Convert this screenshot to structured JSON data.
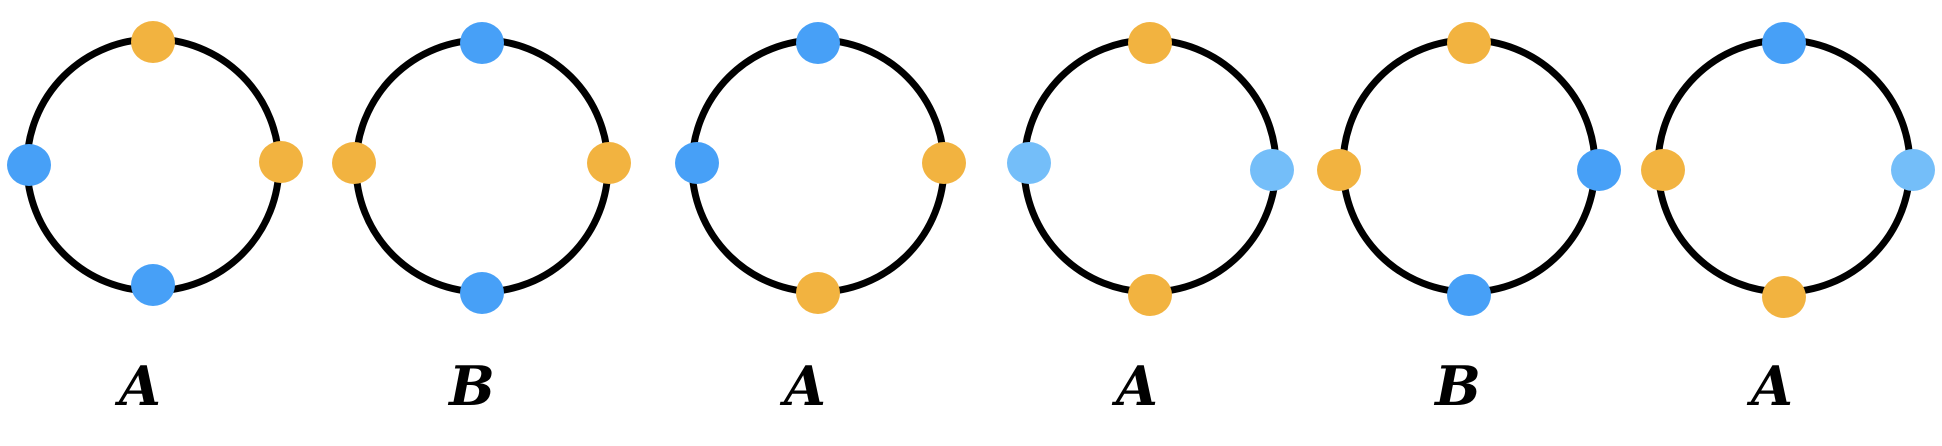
{
  "colors": {
    "ring": "#000000",
    "orange": "#F2B340",
    "blue": "#47A0F7",
    "light_blue": "#74BEF9"
  },
  "diagrams": [
    {
      "label": "A",
      "nodes": {
        "top": "orange",
        "right": "orange",
        "bottom": "blue",
        "left": "blue"
      }
    },
    {
      "label": "B",
      "nodes": {
        "top": "blue",
        "right": "orange",
        "bottom": "blue",
        "left": "orange"
      }
    },
    {
      "label": "A",
      "nodes": {
        "top": "blue",
        "right": "orange",
        "bottom": "orange",
        "left": "blue"
      }
    },
    {
      "label": "A",
      "nodes": {
        "top": "orange",
        "right": "light_blue",
        "bottom": "orange",
        "left": "light_blue"
      }
    },
    {
      "label": "B",
      "nodes": {
        "top": "orange",
        "right": "blue",
        "bottom": "blue",
        "left": "orange"
      }
    },
    {
      "label": "A",
      "nodes": {
        "top": "blue",
        "right": "light_blue",
        "bottom": "orange",
        "left": "orange"
      }
    }
  ]
}
